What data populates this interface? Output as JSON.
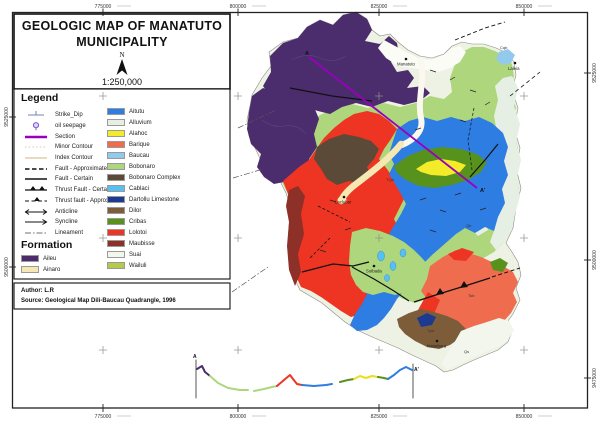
{
  "frame": {
    "top_labels": [
      "775000",
      "800000",
      "825000",
      "850000"
    ],
    "bottom_labels": [
      "775000",
      "800000",
      "825000",
      "850000"
    ],
    "left_labels": [
      "9525000",
      "9500000"
    ],
    "right_labels": [
      "9525000",
      "9500000",
      "9475000"
    ]
  },
  "title_box": {
    "line1": "GEOLOGIC MAP OF MANATUTO",
    "line2": "MUNICIPALITY",
    "north": "N",
    "scale": "1:250,000"
  },
  "legend": {
    "title": "Legend",
    "symbols": [
      {
        "label": "Strike_Dip",
        "type": "strike-dip"
      },
      {
        "label": "oil seepage",
        "type": "oil-seepage"
      },
      {
        "label": "Section",
        "type": "section"
      },
      {
        "label": "Minor Contour",
        "type": "minor-contour"
      },
      {
        "label": "Index Contour",
        "type": "index-contour"
      },
      {
        "label": "Fault - Approximate",
        "type": "fault-approx"
      },
      {
        "label": "Fault - Certain",
        "type": "fault-certain"
      },
      {
        "label": "Thrust Fault - Certain",
        "type": "thrust-certain"
      },
      {
        "label": "Thrust fault - Approximate",
        "type": "thrust-approx"
      },
      {
        "label": "Anticline",
        "type": "anticline"
      },
      {
        "label": "Syncline",
        "type": "syncline"
      },
      {
        "label": "Lineament",
        "type": "lineament"
      }
    ],
    "formation_title": "Formation",
    "formations_left": [
      {
        "name": "Aileu",
        "color": "#4b2d6e"
      },
      {
        "name": "Ainaro",
        "color": "#f6e8b2"
      }
    ],
    "formations_right": [
      {
        "name": "Aitutu",
        "color": "#2e7de2"
      },
      {
        "name": "Alluvium",
        "color": "#e6efe3"
      },
      {
        "name": "Alahoc",
        "color": "#f4ec28"
      },
      {
        "name": "Barique",
        "color": "#ef6d4e"
      },
      {
        "name": "Baucau",
        "color": "#92c9ec"
      },
      {
        "name": "Bobonaro",
        "color": "#aed67d"
      },
      {
        "name": "Bobonaro Complex",
        "color": "#5b4a38"
      },
      {
        "name": "Cablaci",
        "color": "#57c0f0"
      },
      {
        "name": "Dartollu Limestone",
        "color": "#1e3a90"
      },
      {
        "name": "Dilor",
        "color": "#7d5c3a"
      },
      {
        "name": "Cribas",
        "color": "#57921d"
      },
      {
        "name": "Lolotoi",
        "color": "#ee3423"
      },
      {
        "name": "Maubisse",
        "color": "#8d3028"
      },
      {
        "name": "Suai",
        "color": "#f3f6ec"
      },
      {
        "name": "Wailuli",
        "color": "#b6c94b"
      }
    ]
  },
  "credits": {
    "author": "Author: L.R",
    "source": "Source: Geological Map Dili-Baucau Quadrangle, 1996"
  },
  "map": {
    "section_label_start": "A",
    "section_label_end": "A'",
    "towns": [
      {
        "name": "Manatuto"
      },
      {
        "name": "Laleia"
      },
      {
        "name": "Laclubar"
      },
      {
        "name": "Soibada"
      },
      {
        "name": "Natarbora"
      }
    ],
    "unit_labels": [
      "Cqb",
      "Qb",
      "TQa",
      "Tob",
      "Tpd",
      "Qs"
    ]
  },
  "cross_section": {
    "start": "A",
    "end": "A'"
  }
}
